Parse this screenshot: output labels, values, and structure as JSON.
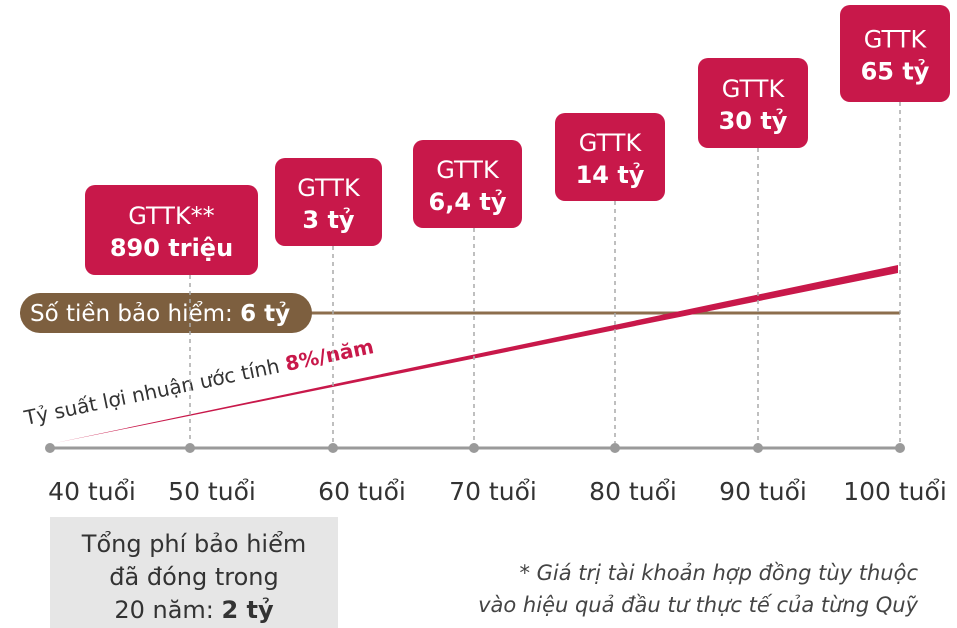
{
  "boxes": [
    {
      "line1": "GTTK**",
      "line2": "890 triệu"
    },
    {
      "line1": "GTTK",
      "line2": "3 tỷ"
    },
    {
      "line1": "GTTK",
      "line2": "6,4 tỷ"
    },
    {
      "line1": "GTTK",
      "line2": "14 tỷ"
    },
    {
      "line1": "GTTK",
      "line2": "30 tỷ"
    },
    {
      "line1": "GTTK",
      "line2": "65 tỷ"
    }
  ],
  "ages": [
    "40 tuổi",
    "50 tuổi",
    "60 tuổi",
    "70 tuổi",
    "80 tuổi",
    "90 tuổi",
    "100 tuổi"
  ],
  "sum_insured": {
    "label": "Số tiền bảo hiểm: ",
    "value": "6 tỷ"
  },
  "return_rate": {
    "label": "Tỷ suất lợi nhuận ước tính ",
    "value": "8%/năm"
  },
  "premium_box": {
    "line1": "Tổng phí bảo hiểm",
    "line2": "đã đóng trong",
    "line3": "20 năm: ",
    "line3_bold": "2 tỷ"
  },
  "footnote": {
    "line1": "* Giá trị tài khoản hợp đồng tùy thuộc",
    "line2": "vào hiệu quả đầu tư thực tế của từng Quỹ"
  }
}
